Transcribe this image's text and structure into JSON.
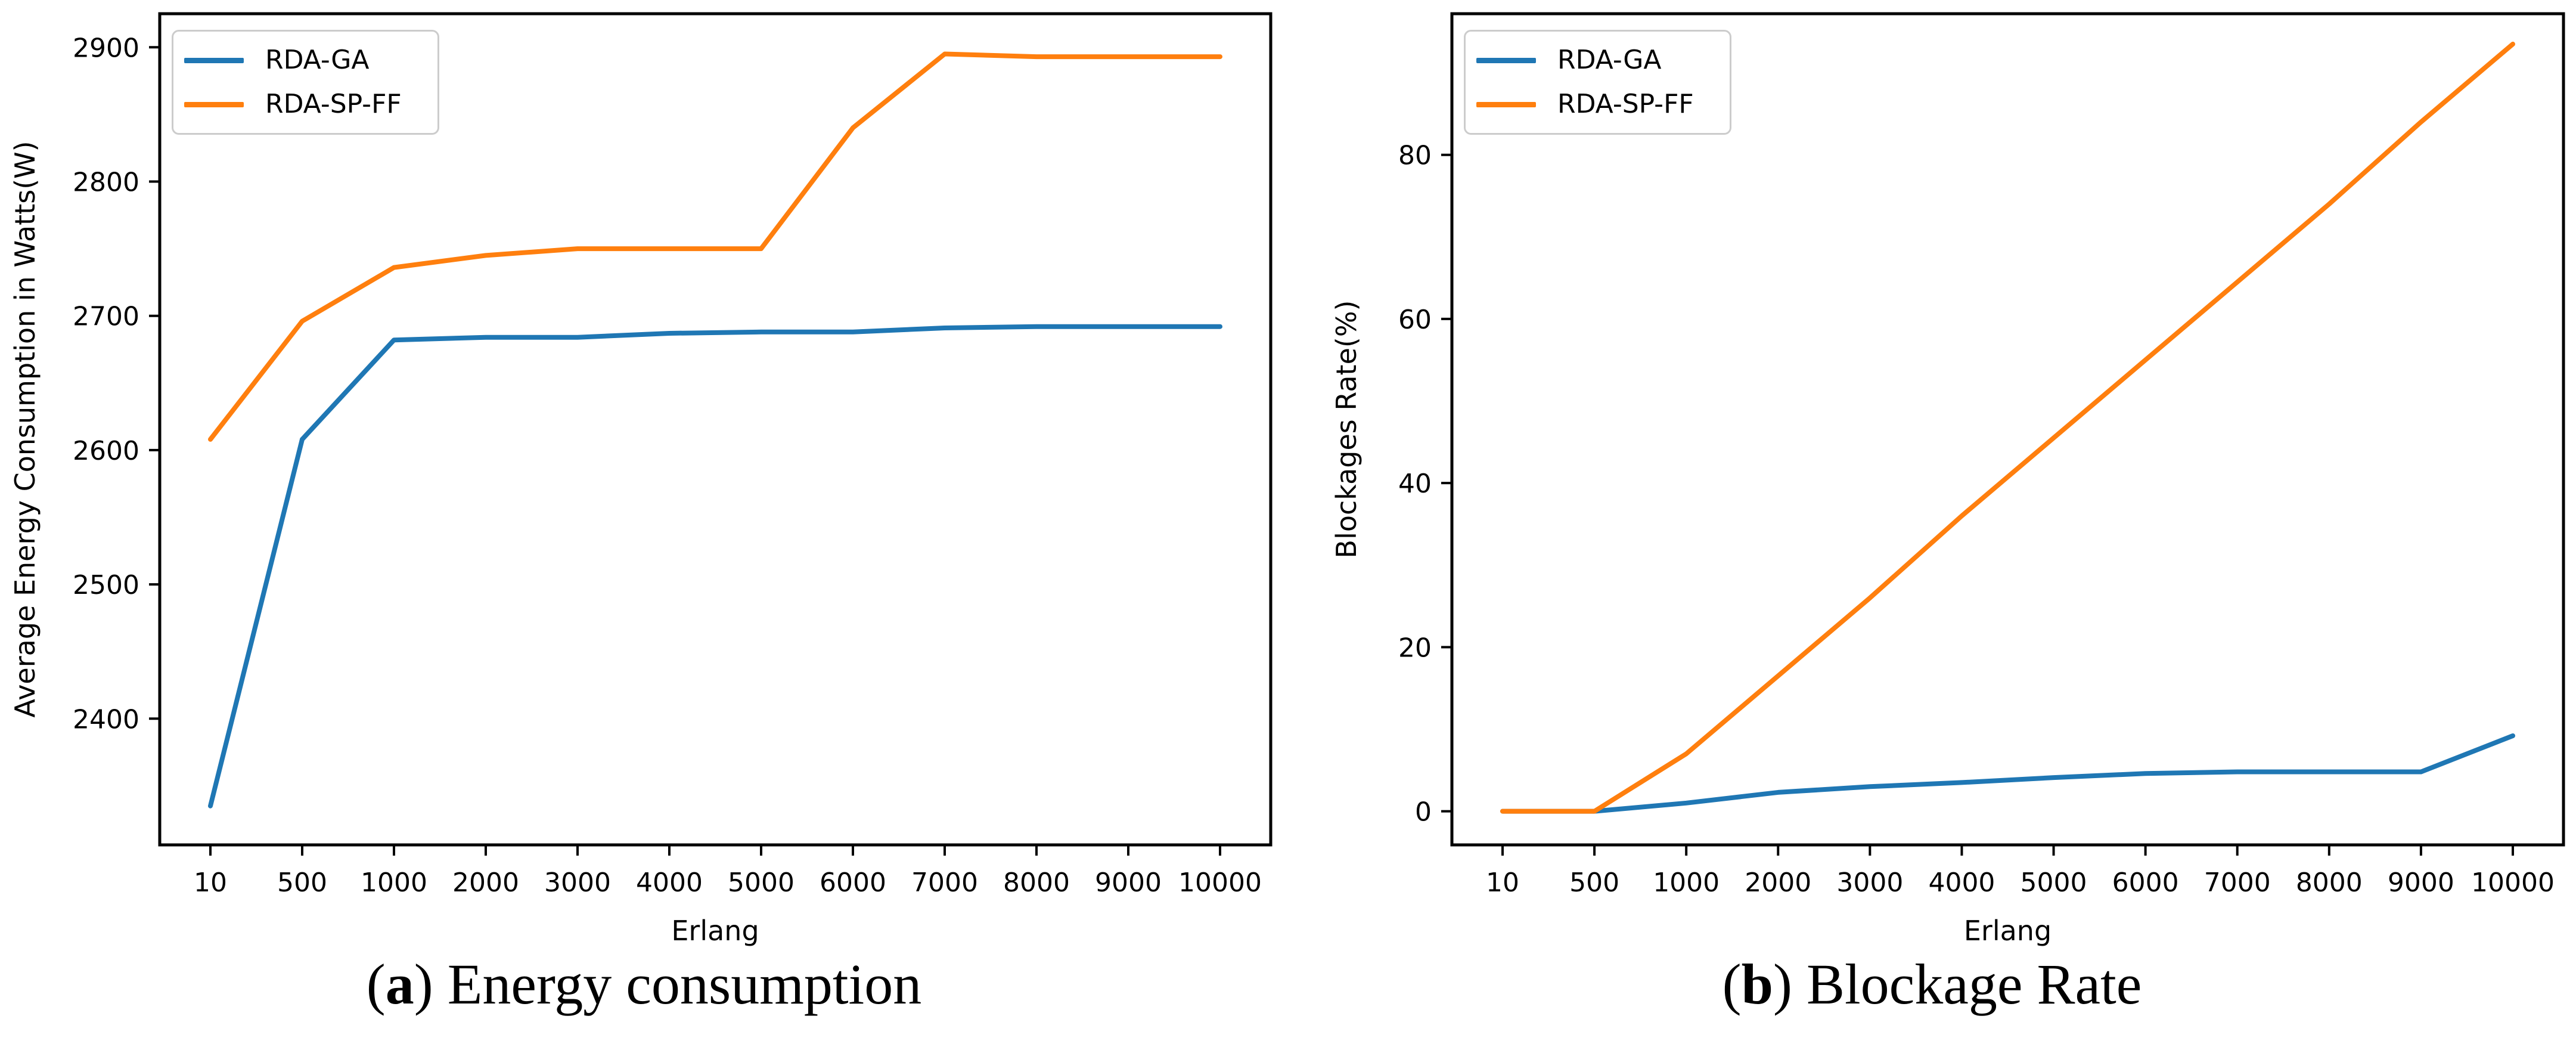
{
  "figure": {
    "background": "#ffffff",
    "captions": [
      {
        "lparen": "(",
        "letter": "a",
        "rparen": ") ",
        "text": "Energy consumption"
      },
      {
        "lparen": "(",
        "letter": "b",
        "rparen": ") ",
        "text": "Blockage Rate"
      }
    ]
  },
  "legend": {
    "entries": [
      {
        "label": "RDA-GA",
        "color": "#1f77b4"
      },
      {
        "label": "RDA-SP-FF",
        "color": "#ff7f0e"
      }
    ]
  },
  "colors": {
    "series_blue": "#1f77b4",
    "series_orange": "#ff7f0e",
    "spine": "#000000",
    "legend_border": "#cccccc"
  },
  "chart_data": [
    {
      "type": "line",
      "title": "",
      "xlabel": "Erlang",
      "ylabel": "Average Energy Consumption in Watts(W)",
      "categories": [
        "10",
        "500",
        "1000",
        "2000",
        "3000",
        "4000",
        "5000",
        "6000",
        "7000",
        "8000",
        "9000",
        "10000"
      ],
      "series": [
        {
          "name": "RDA-GA",
          "color": "#1f77b4",
          "values": [
            2335,
            2608,
            2682,
            2684,
            2684,
            2687,
            2688,
            2688,
            2691,
            2692,
            2692,
            2692
          ]
        },
        {
          "name": "RDA-SP-FF",
          "color": "#ff7f0e",
          "values": [
            2608,
            2696,
            2736,
            2745,
            2750,
            2750,
            2750,
            2840,
            2895,
            2893,
            2893,
            2893
          ]
        }
      ],
      "ylim": [
        2306,
        2925
      ],
      "yticks": [
        2400,
        2500,
        2600,
        2700,
        2800,
        2900
      ],
      "grid": false,
      "legend_position": "upper left"
    },
    {
      "type": "line",
      "title": "",
      "xlabel": "Erlang",
      "ylabel": "Blockages Rate(%)",
      "categories": [
        "10",
        "500",
        "1000",
        "2000",
        "3000",
        "4000",
        "5000",
        "6000",
        "7000",
        "8000",
        "9000",
        "10000"
      ],
      "series": [
        {
          "name": "RDA-GA",
          "color": "#1f77b4",
          "values": [
            0,
            0,
            1.0,
            2.3,
            3.0,
            3.5,
            4.1,
            4.6,
            4.8,
            4.8,
            4.8,
            9.2
          ]
        },
        {
          "name": "RDA-SP-FF",
          "color": "#ff7f0e",
          "values": [
            0,
            0,
            7.0,
            16.5,
            26.0,
            36.0,
            45.5,
            55.0,
            64.5,
            74.0,
            84.0,
            93.5
          ]
        }
      ],
      "ylim": [
        -4.1,
        97.2
      ],
      "yticks": [
        0,
        20,
        40,
        60,
        80
      ],
      "grid": false,
      "legend_position": "upper left"
    }
  ]
}
